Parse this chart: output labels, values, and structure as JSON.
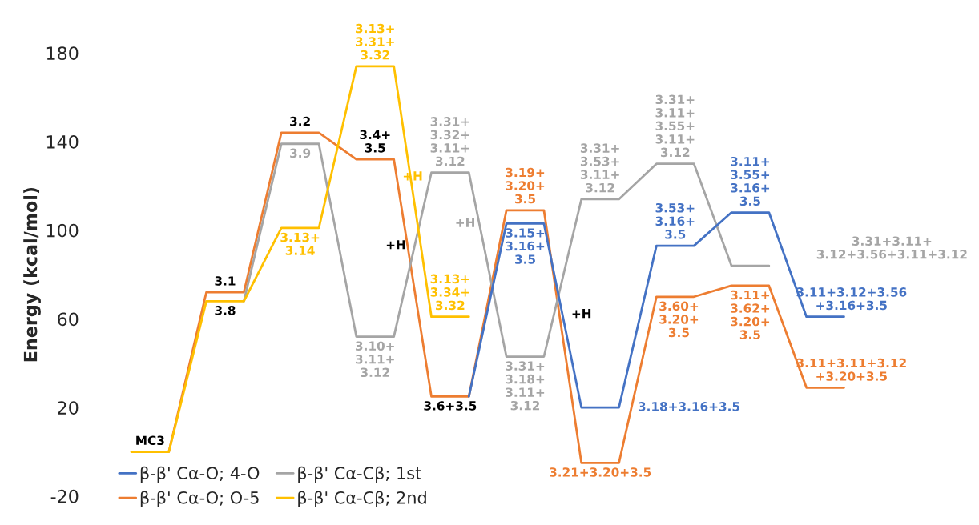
{
  "chart_data": {
    "type": "line",
    "ylabel": "Energy (kcal/mol)",
    "categories": [
      null,
      null,
      null,
      null,
      null,
      null,
      null,
      null,
      null,
      null,
      null,
      null,
      null,
      null,
      null,
      null,
      null,
      null,
      null,
      null
    ],
    "ylim": [
      -20,
      180
    ],
    "yticks": [
      -20,
      20,
      60,
      100,
      140,
      180
    ],
    "grid": false,
    "legend": "bottom left",
    "marker": "none",
    "line_style": "solid",
    "series": [
      {
        "name": "β-β' Cα-O; 4-O",
        "color": "#4472c4",
        "values": [
          null,
          null,
          null,
          null,
          null,
          null,
          null,
          null,
          null,
          25,
          103,
          103,
          20,
          20,
          93,
          93,
          108,
          108,
          61,
          61
        ]
      },
      {
        "name": "β-β' Cα-O; O-5",
        "color": "#ed7d31",
        "values": [
          null,
          0,
          72,
          72,
          144,
          144,
          132,
          132,
          25,
          25,
          109,
          109,
          -5,
          -5,
          70,
          70,
          75,
          75,
          29,
          29
        ]
      },
      {
        "name": "β-β' Cα-Cβ; 1st",
        "color": "#a5a5a5",
        "values": [
          null,
          null,
          null,
          68,
          139,
          139,
          52,
          52,
          126,
          126,
          43,
          43,
          114,
          114,
          130,
          130,
          84,
          84,
          null,
          null
        ]
      },
      {
        "name": "β-β' Cα-Cβ; 2nd",
        "color": "#ffc000",
        "values": [
          0,
          0,
          68,
          68,
          101,
          101,
          174,
          174,
          61,
          61,
          null,
          null,
          null,
          null,
          null,
          null,
          null,
          null,
          null,
          null
        ]
      }
    ],
    "annotations": [
      "MC3",
      "3.1",
      "3.8",
      "3.2",
      "3.4+\n3.5",
      "3.6+3.5",
      "+H",
      "+H",
      "+H",
      "+H",
      "3.13+\n3.14",
      "3.13+\n3.31+\n3.32",
      "3.13+\n3.34+\n3.32",
      "3.9",
      "3.10+\n3.11+\n3.12",
      "3.31+\n3.32+\n3.11+\n3.12",
      "3.31+\n3.18+\n3.11+\n3.12",
      "3.31+\n3.53+\n3.11+\n3.12",
      "3.31+\n3.11+\n3.55+\n3.11+\n3.12",
      "3.31+3.11+\n3.12+3.56+3.11+3.12",
      "3.15+\n3.16+\n3.5",
      "3.18+3.16+3.5",
      "3.53+\n3.16+\n3.5",
      "3.11+\n3.55+\n3.16+\n3.5",
      "3.11+3.12+3.56\n+3.16+3.5",
      "3.19+\n3.20+\n3.5",
      "3.21+3.20+3.5",
      "3.60+\n3.20+\n3.5",
      "3.11+\n3.62+\n3.20+\n3.5",
      "3.11+3.11+3.12\n+3.20+3.5"
    ]
  }
}
